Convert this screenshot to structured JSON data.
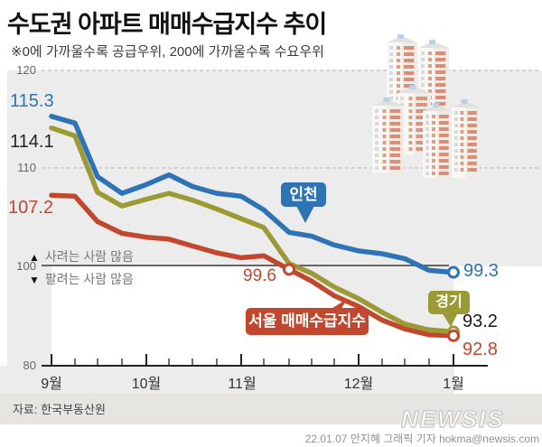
{
  "header": {
    "title": "수도권 아파트 매매수급지수 추이",
    "subtitle": "※0에 가까울수록 공급우위, 200에 가까울수록 수요우위"
  },
  "chart_data": {
    "type": "line",
    "x_unit": "week",
    "x_month_labels": [
      "9월",
      "10월",
      "11월",
      "12월",
      "1월"
    ],
    "y_tick_labels": [
      "120",
      "110",
      "100",
      "80"
    ],
    "ylim_visible": [
      80,
      120
    ],
    "grid": "dashed horizontal at 120 and 110, solid reference line at 100, baseline at 80",
    "series": [
      {
        "name": "인천",
        "color": "#2e73b4",
        "values": [
          115.3,
          114.6,
          109.1,
          107.4,
          108.3,
          109.3,
          108.1,
          107.4,
          107.1,
          105.7,
          103.4,
          103.0,
          102.1,
          101.5,
          101.2,
          100.7,
          99.5,
          99.3
        ]
      },
      {
        "name": "경기",
        "color": "#9c9a34",
        "values": [
          114.1,
          113.3,
          107.5,
          106.1,
          106.8,
          107.4,
          106.7,
          105.8,
          104.8,
          103.9,
          100.2,
          99.2,
          97.8,
          96.6,
          95.2,
          94.0,
          93.4,
          93.2
        ]
      },
      {
        "name": "서울 매매수급지수",
        "color": "#c2472f",
        "values": [
          107.2,
          107.1,
          104.5,
          103.3,
          102.9,
          102.7,
          102.0,
          101.3,
          100.8,
          101.0,
          99.6,
          98.4,
          96.9,
          95.8,
          94.4,
          93.5,
          92.9,
          92.8
        ]
      }
    ],
    "annotations": {
      "incheon_start": "115.3",
      "gyeonggi_start": "114.1",
      "seoul_start": "107.2",
      "seoul_mid": "99.6",
      "incheon_end": "99.3",
      "gyeonggi_end": "93.2",
      "seoul_end": "92.8"
    }
  },
  "legend_note": {
    "up_icon": "▲",
    "up_text": "사려는 사람 많음",
    "down_icon": "▼",
    "down_text": "팔려는 사람 많음"
  },
  "callouts": {
    "incheon": "인천",
    "gyeonggi": "경기",
    "seoul": "서울 매매수급지수"
  },
  "footer": {
    "source": "자료: 한국부동산원",
    "credit": "22.01.07 안지혜 그래픽 기자 hokma@newsis.com",
    "logo": "NEWSIS"
  },
  "colors": {
    "incheon": "#2e73b4",
    "gyeonggi": "#9c9a34",
    "seoul": "#c2472f",
    "plot_bg": "#ececec",
    "source_band": "#e7e5e2"
  }
}
